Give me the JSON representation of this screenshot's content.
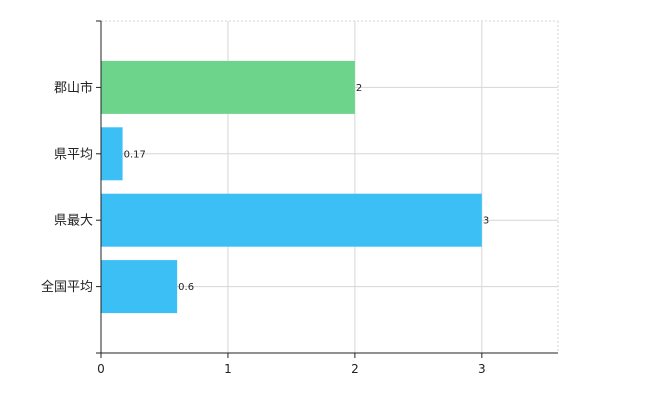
{
  "chart_data": {
    "type": "bar",
    "orientation": "horizontal",
    "title": "",
    "xlabel": "",
    "ylabel": "",
    "categories": [
      "郡山市",
      "県平均",
      "県最大",
      "全国平均"
    ],
    "values": [
      2,
      0.17,
      3,
      0.6
    ],
    "value_labels": [
      "2",
      "0.17",
      "3",
      "0.6"
    ],
    "bar_colors": [
      "#6dd48c",
      "#3bbff5",
      "#3bbff5",
      "#3bbff5"
    ],
    "xlim": [
      0,
      3.6
    ],
    "xticks": [
      0,
      1,
      2,
      3
    ],
    "xtick_labels": [
      "0",
      "1",
      "2",
      "3"
    ],
    "grid": true,
    "legend": "none"
  }
}
